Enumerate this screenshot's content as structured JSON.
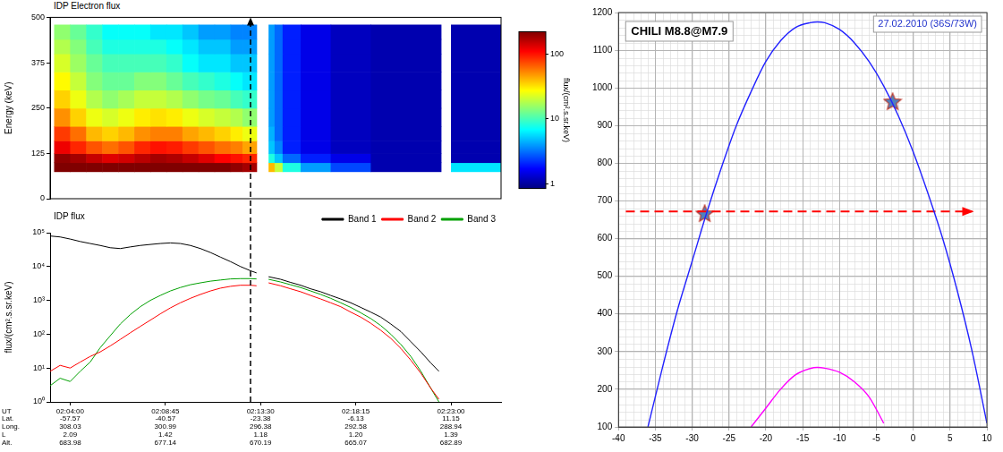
{
  "chart_data": [
    {
      "type": "heatmap",
      "title": "IDP Electron flux",
      "y_label": "Energy (keV)",
      "xlim": [
        3,
        25.5
      ],
      "ylim": [
        0,
        500
      ],
      "yticks": [
        0,
        125,
        250,
        375,
        500
      ],
      "tick_labels": "y",
      "x_edges": [
        3.2,
        4,
        4.8,
        5.6,
        6.4,
        7.2,
        8,
        8.8,
        9.6,
        10.4,
        11.2,
        12,
        12.6,
        13.3,
        13.9,
        14.2,
        14.6,
        15.5,
        17,
        19,
        22.5,
        23,
        25.5
      ],
      "y_edges": [
        75,
        100,
        125,
        160,
        200,
        250,
        300,
        350,
        400,
        440,
        480
      ],
      "z": [
        [
          250,
          250,
          250,
          240,
          240,
          240,
          250,
          250,
          240,
          230,
          220,
          200,
          180,
          null,
          40,
          20,
          8,
          4,
          2.5,
          1.1,
          null,
          6
        ],
        [
          200,
          180,
          150,
          130,
          140,
          160,
          180,
          170,
          150,
          130,
          110,
          100,
          90,
          null,
          8,
          5,
          3,
          2,
          1.5,
          1.1,
          null,
          1.1
        ],
        [
          120,
          90,
          70,
          60,
          70,
          90,
          100,
          95,
          80,
          70,
          60,
          55,
          45,
          null,
          5,
          3.5,
          2,
          1.5,
          1.2,
          1.1,
          null,
          1.1
        ],
        [
          80,
          60,
          40,
          35,
          40,
          50,
          55,
          55,
          45,
          40,
          35,
          30,
          25,
          null,
          4.5,
          3,
          2,
          1.5,
          1.2,
          1.1,
          null,
          1.1
        ],
        [
          50,
          35,
          25,
          22,
          25,
          30,
          32,
          30,
          25,
          22,
          20,
          18,
          15,
          null,
          4,
          3,
          2,
          1.5,
          1.2,
          1.1,
          null,
          1.1
        ],
        [
          35,
          25,
          18,
          15,
          17,
          20,
          20,
          18,
          15,
          13,
          12,
          10,
          9,
          null,
          4,
          3,
          2,
          1.5,
          1.2,
          1.1,
          null,
          1.1
        ],
        [
          28,
          20,
          14,
          12,
          12,
          14,
          14,
          12,
          10,
          9,
          8,
          7,
          6,
          null,
          4,
          3,
          2,
          1.5,
          1.2,
          1.1,
          null,
          1.1
        ],
        [
          22,
          16,
          12,
          10,
          10,
          10,
          10,
          9,
          7,
          6,
          6,
          5,
          5,
          null,
          4,
          3,
          2,
          1.5,
          1.2,
          1.1,
          null,
          1.1
        ],
        [
          18,
          14,
          10,
          8,
          8,
          8,
          8,
          7,
          6,
          5,
          5,
          4,
          4,
          null,
          4,
          3,
          2,
          1.5,
          1.2,
          1.1,
          null,
          1.1
        ],
        [
          15,
          12,
          9,
          7,
          7,
          7,
          6,
          6,
          5,
          4,
          4,
          3.5,
          3.5,
          null,
          4,
          3,
          2,
          1.5,
          1.2,
          1.1,
          null,
          1.1
        ]
      ],
      "colorbar": {
        "label": "flux/(cm².s.sr.keV)",
        "range": [
          0.85,
          220
        ],
        "ticks": [
          1,
          10,
          100
        ],
        "log": true
      },
      "vline": {
        "x": 13,
        "line_style": "dashed",
        "marker": "arrow"
      }
    },
    {
      "type": "line",
      "title": "IDP flux",
      "y_label": "flux/(cm².s.sr.keV)",
      "x_label": "UT",
      "x": [
        3,
        3.5,
        4,
        4.5,
        5,
        5.5,
        6,
        6.5,
        7,
        7.5,
        8,
        8.5,
        9,
        9.5,
        10,
        10.5,
        11,
        11.5,
        12,
        12.5,
        13,
        13.3,
        13.6,
        13.9,
        14.5,
        15,
        15.5,
        16,
        16.5,
        17,
        17.5,
        18,
        18.5,
        19,
        19.5,
        20,
        20.5,
        21,
        21.5,
        22,
        22.4
      ],
      "series": [
        {
          "name": "Band 1",
          "color": "#000000",
          "values": [
            80000,
            75000,
            65000,
            55000,
            48000,
            42000,
            36000,
            34000,
            38000,
            42000,
            45000,
            48000,
            50000,
            48000,
            42000,
            34000,
            26000,
            19000,
            14000,
            10000,
            7500,
            6500,
            null,
            5000,
            4200,
            3400,
            2800,
            2200,
            1800,
            1400,
            1100,
            850,
            620,
            450,
            320,
            200,
            120,
            60,
            30,
            14,
            8
          ]
        },
        {
          "name": "Band 2",
          "color": "#ff0000",
          "values": [
            8,
            12,
            10,
            15,
            22,
            30,
            45,
            70,
            110,
            170,
            260,
            400,
            600,
            850,
            1150,
            1500,
            1900,
            2300,
            2600,
            2800,
            2800,
            2700,
            null,
            3300,
            2700,
            2200,
            1800,
            1400,
            1100,
            850,
            650,
            450,
            320,
            210,
            130,
            75,
            38,
            17,
            7,
            2.5,
            1.2
          ]
        },
        {
          "name": "Band 3",
          "color": "#00a000",
          "values": [
            3,
            5,
            4,
            8,
            15,
            40,
            90,
            200,
            380,
            650,
            1000,
            1400,
            1900,
            2400,
            2900,
            3300,
            3700,
            4000,
            4300,
            4400,
            4400,
            4300,
            null,
            4200,
            3500,
            2900,
            2400,
            1900,
            1500,
            1150,
            850,
            620,
            430,
            290,
            180,
            100,
            50,
            22,
            8,
            2.5,
            1
          ]
        }
      ],
      "xlim": [
        3,
        25.5
      ],
      "xticks": [
        {
          "value": 4,
          "label": "02:04:00"
        },
        {
          "value": 8.75,
          "label": "02:08:45"
        },
        {
          "value": 13.5,
          "label": "02:13:30"
        },
        {
          "value": 18.25,
          "label": "02:18:15"
        },
        {
          "value": 23,
          "label": "02:23:00"
        }
      ],
      "ylim": [
        1,
        100000
      ],
      "yticks": [
        {
          "value": 1,
          "label": "10⁰"
        },
        {
          "value": 10,
          "label": "10¹"
        },
        {
          "value": 100,
          "label": "10²"
        },
        {
          "value": 1000,
          "label": "10³"
        },
        {
          "value": 10000,
          "label": "10⁴"
        },
        {
          "value": 100000,
          "label": "10⁵"
        }
      ],
      "log": "y",
      "legend": "top-right",
      "ephemeris": [
        {
          "name": "Lat.",
          "values": [
            "-57.57",
            "-40.57",
            "-23.38",
            "-6.13",
            "11.15"
          ]
        },
        {
          "name": "Long.",
          "values": [
            "308.03",
            "300.99",
            "296.38",
            "292.58",
            "288.94"
          ]
        },
        {
          "name": "L",
          "values": [
            "2.09",
            "1.42",
            "1.18",
            "1.20",
            "1.39"
          ]
        },
        {
          "name": "Alt.",
          "values": [
            "683.98",
            "677.14",
            "670.19",
            "665.07",
            "682.89"
          ]
        }
      ],
      "vline": {
        "x": 13,
        "line_style": "dashed"
      }
    },
    {
      "type": "line",
      "title": "CHILI M8.8@M7.9",
      "subtitle": "27.02.2010 (36S/73W)",
      "xlim": [
        -40,
        10
      ],
      "xticks": [
        -40,
        -35,
        -30,
        -25,
        -20,
        -15,
        -10,
        -5,
        0,
        5,
        10
      ],
      "ylim": [
        100,
        1200
      ],
      "yticks": [
        100,
        200,
        300,
        400,
        500,
        600,
        700,
        800,
        900,
        1000,
        1100,
        1200
      ],
      "grid": true,
      "series": [
        {
          "type": "line",
          "color": "#2222ff",
          "x": [
            -36,
            -34,
            -32,
            -30,
            -28,
            -26,
            -24,
            -22,
            -20,
            -18,
            -16,
            -14,
            -13,
            -12,
            -10,
            -8,
            -6,
            -4,
            -2,
            0,
            2,
            4,
            6,
            8,
            10
          ],
          "values": [
            100,
            260,
            410,
            540,
            670,
            790,
            900,
            990,
            1070,
            1125,
            1160,
            1173,
            1175,
            1173,
            1155,
            1120,
            1070,
            1005,
            925,
            830,
            720,
            600,
            460,
            300,
            110
          ]
        },
        {
          "type": "line",
          "color": "#ff00ff",
          "x": [
            -22,
            -20,
            -18,
            -16,
            -14,
            -13,
            -12,
            -10,
            -8,
            -6,
            -4
          ],
          "values": [
            100,
            150,
            200,
            238,
            255,
            258,
            256,
            245,
            220,
            180,
            110
          ]
        },
        {
          "type": "line",
          "color": "#ff0000",
          "line_style": "dashed",
          "marker": "arrow",
          "x": [
            -39,
            8
          ],
          "values": [
            672,
            672
          ]
        },
        {
          "type": "scatter",
          "color": "#4f81bd",
          "marker": "star",
          "x": [
            -28.3,
            -2.8
          ],
          "values": [
            665,
            962
          ]
        }
      ]
    }
  ]
}
